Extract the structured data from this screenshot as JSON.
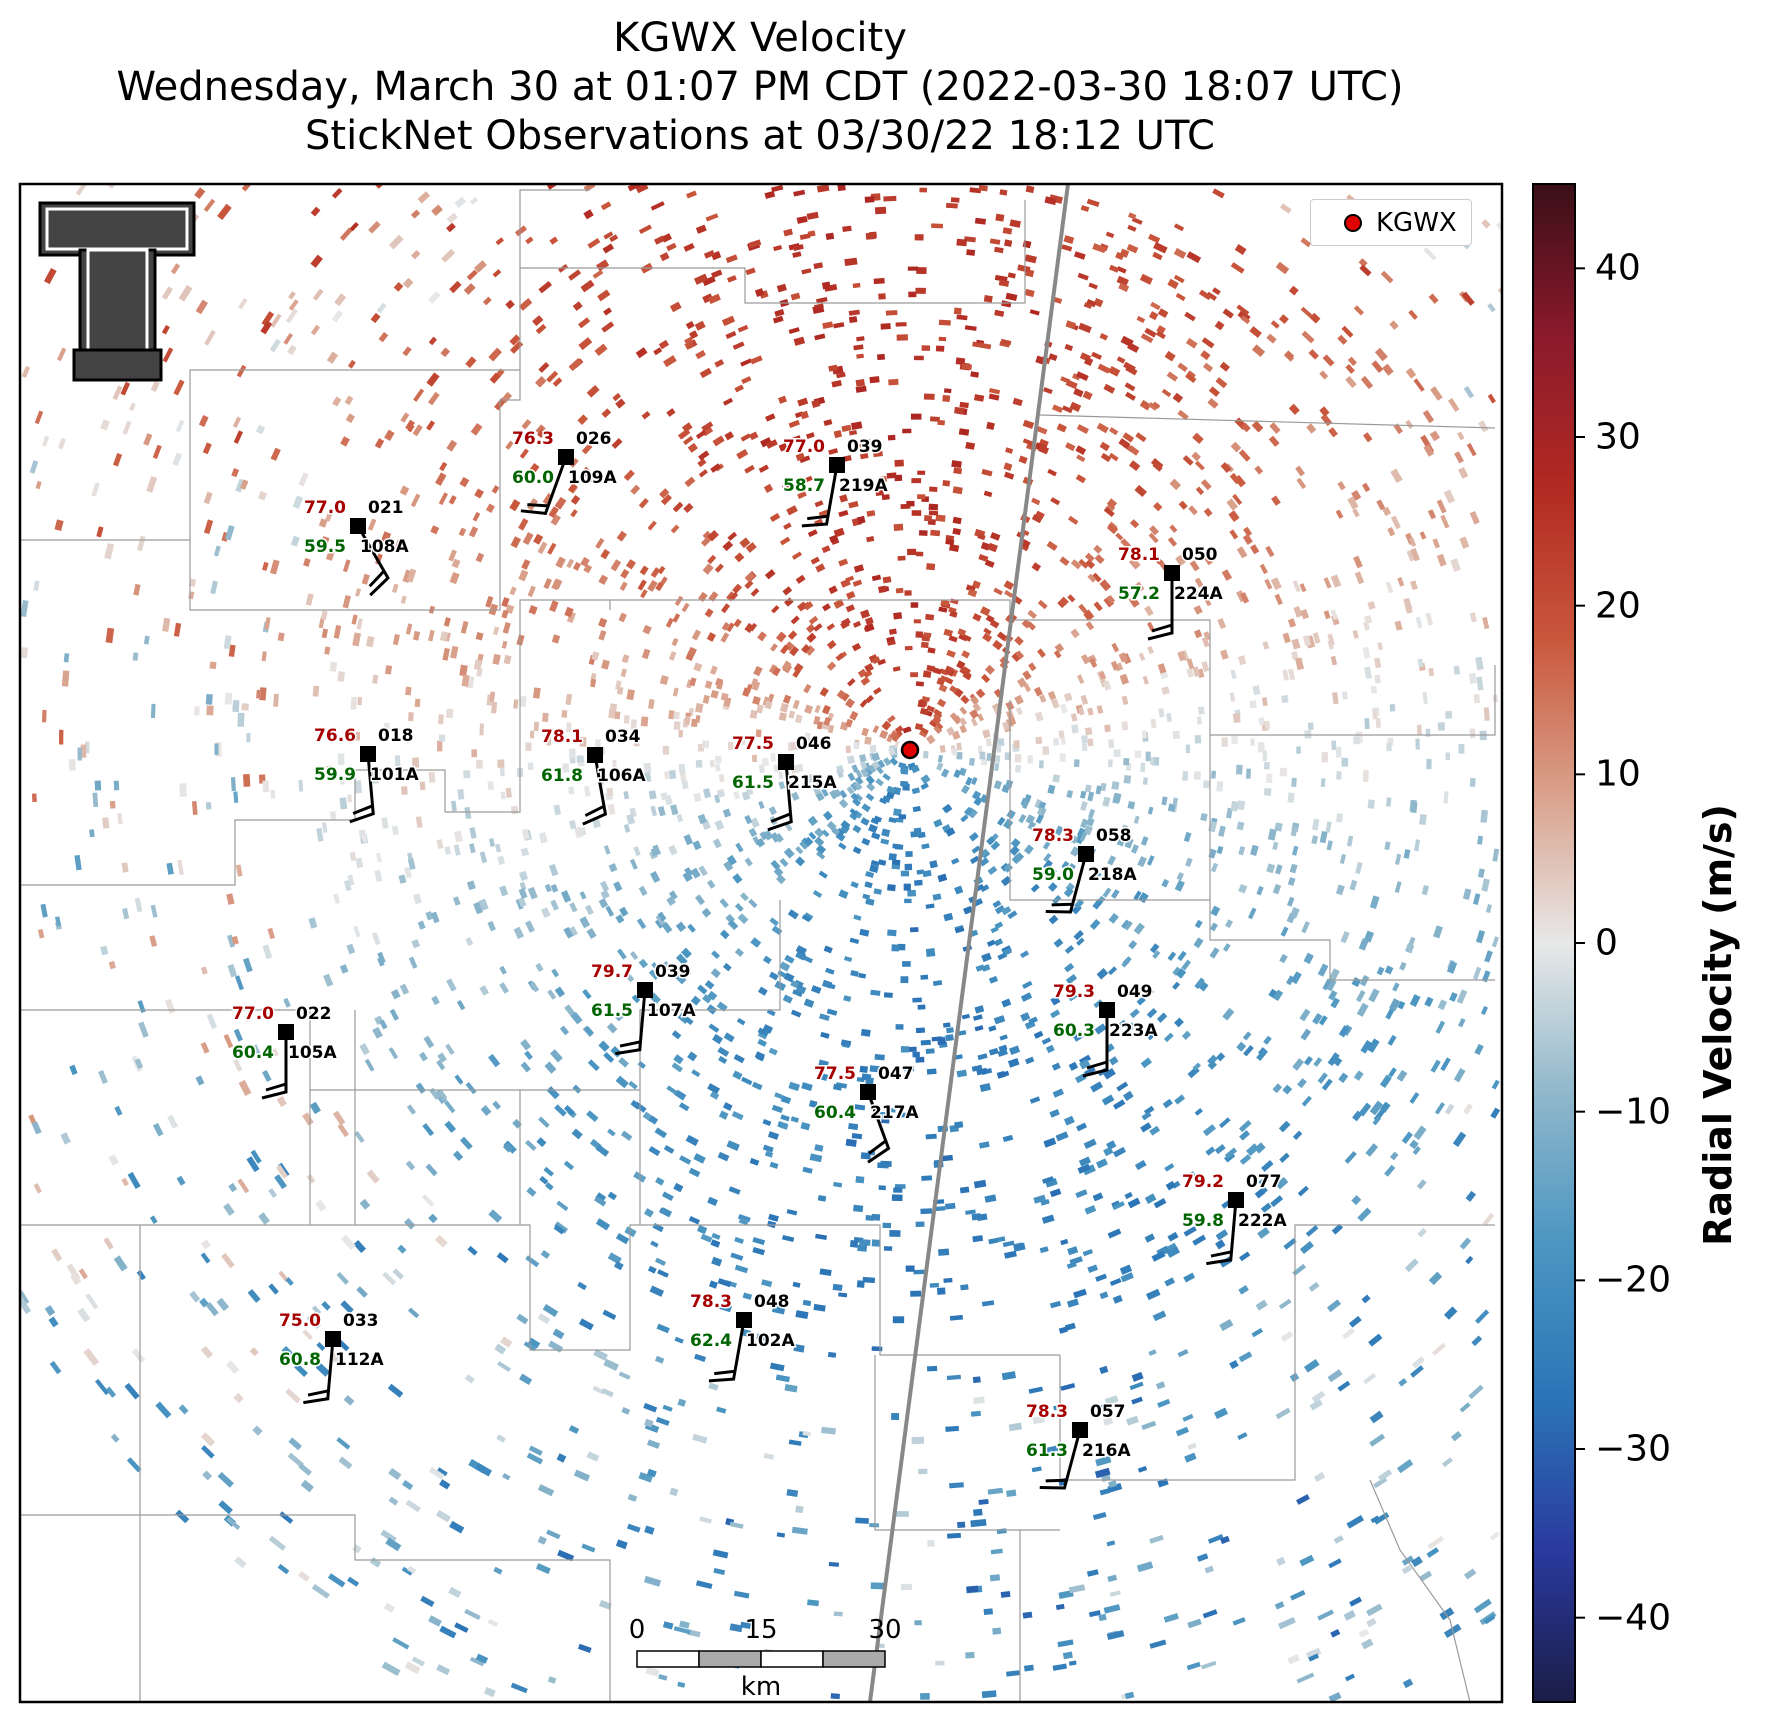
{
  "title": {
    "line1": "KGWX Velocity",
    "line2": "Wednesday, March 30 at 01:07 PM CDT (2022-03-30 18:07 UTC)",
    "line3": "StickNet Observations at 03/30/22 18:12 UTC"
  },
  "legend": {
    "label": "KGWX",
    "marker_color": "#e00000"
  },
  "colorbar": {
    "label": "Radial Velocity (m/s)",
    "min": -45,
    "max": 45,
    "ticks": [
      "40",
      "30",
      "20",
      "10",
      "0",
      "−10",
      "−20",
      "−30",
      "−40"
    ],
    "tick_values": [
      40,
      30,
      20,
      10,
      0,
      -10,
      -20,
      -30,
      -40
    ],
    "colors": [
      "#1b1d47",
      "#2a3a9e",
      "#2b75b7",
      "#4a95c1",
      "#8fb7cb",
      "#e8e8e8",
      "#d9a08a",
      "#c9573c",
      "#b22a22",
      "#8a1a2c",
      "#3a0f17"
    ]
  },
  "scale_bar": {
    "labels": [
      "0",
      "15",
      "30"
    ],
    "unit": "km"
  },
  "logo": {
    "name": "Texas Tech Double T"
  },
  "stations": [
    {
      "id": "026",
      "site": "109A",
      "temp": "76.3",
      "dew": "60.0"
    },
    {
      "id": "039",
      "site": "219A",
      "temp": "77.0",
      "dew": "58.7"
    },
    {
      "id": "021",
      "site": "108A",
      "temp": "77.0",
      "dew": "59.5"
    },
    {
      "id": "050",
      "site": "224A",
      "temp": "78.1",
      "dew": "57.2"
    },
    {
      "id": "018",
      "site": "101A",
      "temp": "76.6",
      "dew": "59.9"
    },
    {
      "id": "034",
      "site": "106A",
      "temp": "78.1",
      "dew": "61.8"
    },
    {
      "id": "046",
      "site": "215A",
      "temp": "77.5",
      "dew": "61.5"
    },
    {
      "id": "058",
      "site": "218A",
      "temp": "78.3",
      "dew": "59.0"
    },
    {
      "id": "039",
      "site": "107A",
      "temp": "79.7",
      "dew": "61.5"
    },
    {
      "id": "049",
      "site": "223A",
      "temp": "79.3",
      "dew": "60.3"
    },
    {
      "id": "022",
      "site": "105A",
      "temp": "77.0",
      "dew": "60.4"
    },
    {
      "id": "047",
      "site": "217A",
      "temp": "77.5",
      "dew": "60.4"
    },
    {
      "id": "077",
      "site": "222A",
      "temp": "79.2",
      "dew": "59.8"
    },
    {
      "id": "033",
      "site": "112A",
      "temp": "75.0",
      "dew": "60.8"
    },
    {
      "id": "048",
      "site": "102A",
      "temp": "78.3",
      "dew": "62.4"
    },
    {
      "id": "057",
      "site": "216A",
      "temp": "78.3",
      "dew": "61.3"
    }
  ]
}
